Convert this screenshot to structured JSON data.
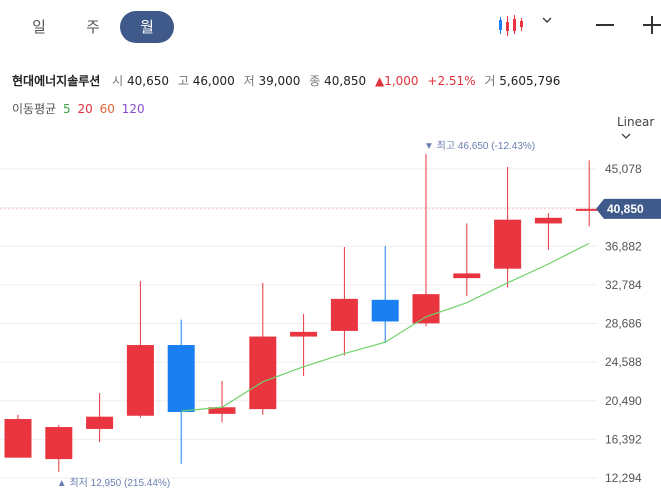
{
  "tabs": [
    {
      "label": "일"
    },
    {
      "label": "주"
    },
    {
      "label": "월",
      "active": true
    }
  ],
  "stock": {
    "name": "현대에너지솔루션",
    "open_label": "시",
    "open": "40,650",
    "high_label": "고",
    "high": "46,000",
    "low_label": "저",
    "low": "39,000",
    "close_label": "종",
    "close": "40,850",
    "change": "▲1,000",
    "change_pct": "+2.51%",
    "volume_label": "거",
    "volume": "5,605,796"
  },
  "moving_average": {
    "label": "이동평균",
    "periods": [
      {
        "value": "5",
        "color": "#3aa54a"
      },
      {
        "value": "20",
        "color": "#e0323c"
      },
      {
        "value": "60",
        "color": "#e0663c"
      },
      {
        "value": "120",
        "color": "#8a4fd0"
      }
    ]
  },
  "scale_mode": "Linear",
  "colors": {
    "up": "#e8353f",
    "down": "#1a7ff0",
    "ma5": "#6fd26a",
    "accent": "#3f5a8a",
    "annotation": "#6a7fb0"
  },
  "chart_data": {
    "type": "candlestick",
    "y_ticks": [
      45078,
      40980,
      36882,
      32784,
      28686,
      24588,
      20490,
      16392,
      12294
    ],
    "ylim": [
      11500,
      48000
    ],
    "current_price_label": "40,850",
    "current_price": 40850,
    "candles": [
      {
        "open": 14450,
        "close": 18550,
        "high": 19000,
        "low": 14450
      },
      {
        "open": 14300,
        "close": 17700,
        "high": 17900,
        "low": 12950
      },
      {
        "open": 17500,
        "close": 18800,
        "high": 21300,
        "low": 16100
      },
      {
        "open": 18900,
        "close": 26400,
        "high": 33200,
        "low": 18700
      },
      {
        "open": 26400,
        "close": 19300,
        "high": 29100,
        "low": 13800
      },
      {
        "open": 19100,
        "close": 19800,
        "high": 22600,
        "low": 18200
      },
      {
        "open": 19600,
        "close": 27300,
        "high": 33000,
        "low": 19000
      },
      {
        "open": 27300,
        "close": 27800,
        "high": 29700,
        "low": 23100
      },
      {
        "open": 27900,
        "close": 31300,
        "high": 36800,
        "low": 25300
      },
      {
        "open": 31200,
        "close": 28900,
        "high": 36900,
        "low": 26600
      },
      {
        "open": 28700,
        "close": 31800,
        "high": 46650,
        "low": 28400
      },
      {
        "open": 33500,
        "close": 34000,
        "high": 39300,
        "low": 31600
      },
      {
        "open": 34500,
        "close": 39700,
        "high": 45300,
        "low": 32500
      },
      {
        "open": 39300,
        "close": 39900,
        "high": 40400,
        "low": 36500
      },
      {
        "open": 40650,
        "close": 40850,
        "high": 46000,
        "low": 39000
      }
    ],
    "ma5": [
      null,
      null,
      null,
      null,
      19400,
      19800,
      22500,
      24100,
      25500,
      26700,
      29400,
      30900,
      33000,
      35000,
      37200
    ],
    "high_annotation": {
      "label": "최고",
      "value": "46,650",
      "pct": "(-12.43%)"
    },
    "low_annotation": {
      "label": "최저",
      "value": "12,950",
      "pct": "(215.44%)"
    }
  }
}
